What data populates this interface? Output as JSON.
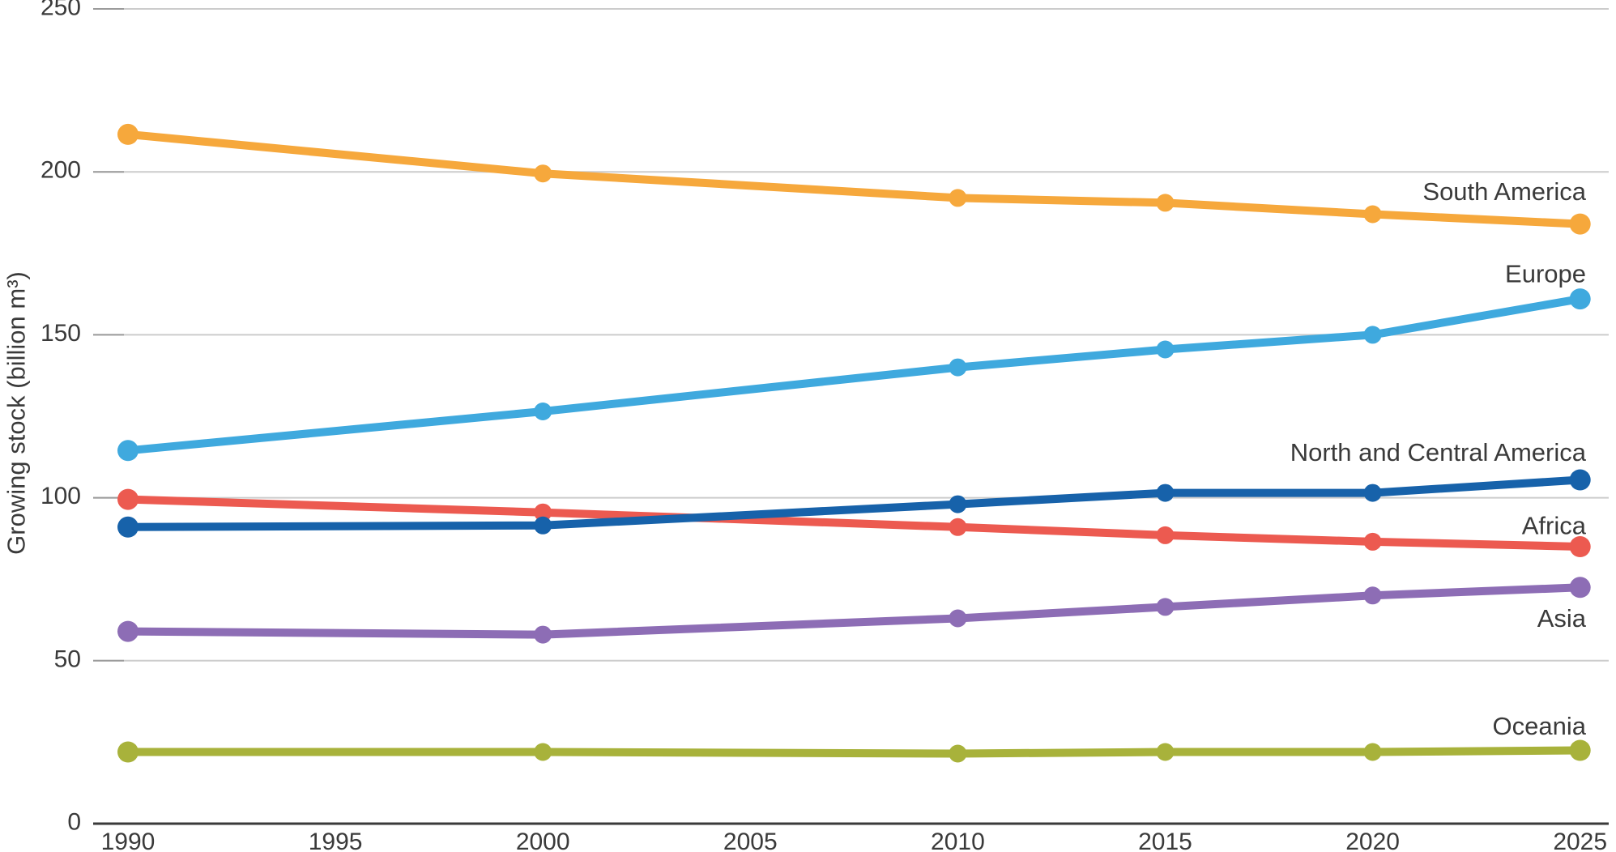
{
  "chart_data": {
    "type": "line",
    "title": "",
    "ylabel": "Growing stock (billion m³)",
    "xlabel": "",
    "ylim": [
      0,
      250
    ],
    "yticks": [
      0,
      50,
      100,
      150,
      200,
      250
    ],
    "xticks": [
      1990,
      1995,
      2000,
      2005,
      2010,
      2015,
      2020,
      2025
    ],
    "x": [
      1990,
      2000,
      2010,
      2015,
      2020,
      2025
    ],
    "grid": "horizontal",
    "legend_position": "right-inline-labels",
    "series": [
      {
        "name": "South America",
        "color": "#F6A83C",
        "values": [
          211.5,
          199.5,
          192.0,
          190.5,
          187.0,
          184.0
        ],
        "label_dy": -40
      },
      {
        "name": "Europe",
        "color": "#3FA9DE",
        "values": [
          114.5,
          126.5,
          140.0,
          145.5,
          150.0,
          161.0
        ],
        "label_dy": -31
      },
      {
        "name": "Africa",
        "color": "#EC5A50",
        "values": [
          99.5,
          95.5,
          91.0,
          88.5,
          86.5,
          85.0
        ],
        "label_dy": -26
      },
      {
        "name": "North and Central America",
        "color": "#1762AA",
        "values": [
          91.0,
          91.5,
          98.0,
          101.5,
          101.5,
          105.5
        ],
        "label_dy": -34
      },
      {
        "name": "Asia",
        "color": "#8D6DB5",
        "values": [
          59.0,
          58.0,
          63.0,
          66.5,
          70.0,
          72.5
        ],
        "label_dy": 38
      },
      {
        "name": "Oceania",
        "color": "#A8B23B",
        "values": [
          22.0,
          22.0,
          21.5,
          22.0,
          22.0,
          22.5
        ],
        "label_dy": -30
      }
    ],
    "colors": {
      "axis": "#3a3a3a",
      "grid": "#cccccc",
      "tick_stub": "#9b9b9b",
      "text": "#3a3a3a",
      "background": "#ffffff"
    }
  }
}
